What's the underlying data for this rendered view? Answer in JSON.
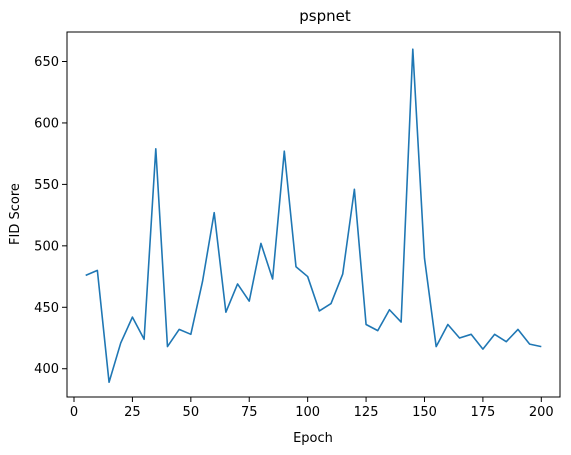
{
  "chart_data": {
    "type": "line",
    "title": "pspnet",
    "xlabel": "Epoch",
    "ylabel": "FID Score",
    "xlim": [
      -3,
      208
    ],
    "ylim": [
      377,
      674
    ],
    "xticks": [
      0,
      25,
      50,
      75,
      100,
      125,
      150,
      175,
      200
    ],
    "yticks": [
      400,
      450,
      500,
      550,
      600,
      650
    ],
    "grid": false,
    "series": [
      {
        "color": "#1f77b4",
        "x": [
          5,
          10,
          15,
          20,
          25,
          30,
          35,
          40,
          45,
          50,
          55,
          60,
          65,
          70,
          75,
          80,
          85,
          90,
          95,
          100,
          105,
          110,
          115,
          120,
          125,
          130,
          135,
          140,
          145,
          150,
          155,
          160,
          165,
          170,
          175,
          180,
          185,
          190,
          195,
          200
        ],
        "y": [
          476,
          480,
          389,
          421,
          442,
          424,
          579,
          418,
          432,
          428,
          471,
          527,
          446,
          469,
          455,
          502,
          473,
          577,
          483,
          475,
          447,
          453,
          477,
          546,
          436,
          431,
          448,
          438,
          660,
          490,
          418,
          436,
          425,
          428,
          416,
          428,
          422,
          432,
          420,
          418
        ]
      }
    ]
  }
}
